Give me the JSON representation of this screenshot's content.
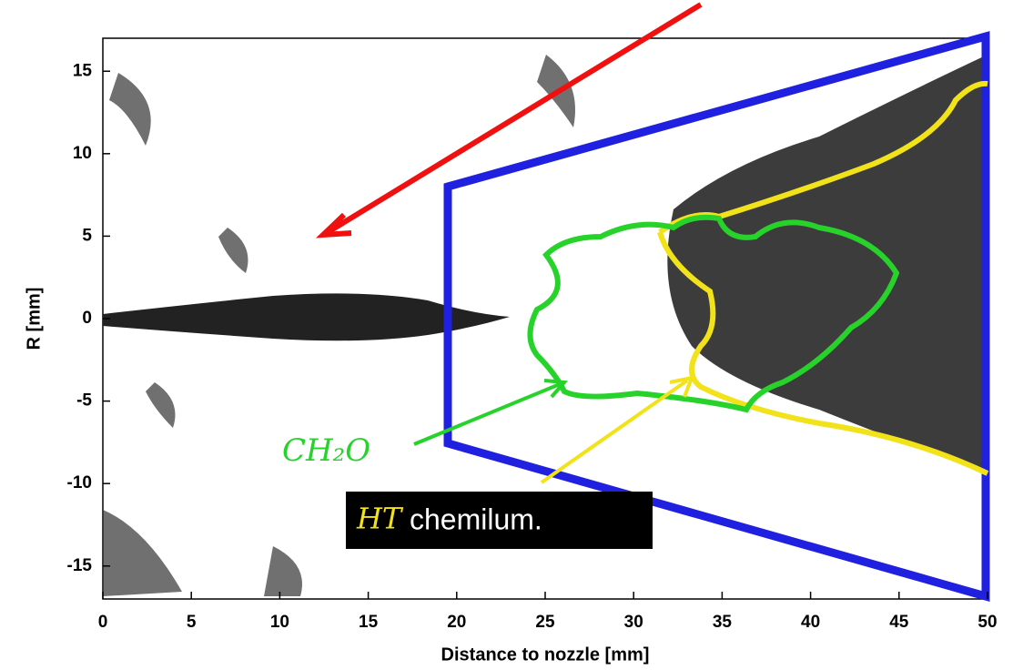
{
  "chart_data": {
    "type": "image",
    "xlabel": "Distance to nozzle [mm]",
    "ylabel": "R [mm]",
    "xlim": [
      0,
      50
    ],
    "ylim": [
      -17,
      17
    ],
    "xticks": [
      0,
      5,
      10,
      15,
      20,
      25,
      30,
      35,
      40,
      45,
      50
    ],
    "yticks": [
      -15,
      -10,
      -5,
      0,
      5,
      10,
      15
    ],
    "annotations": [
      "CH₂O",
      "HT",
      "chemilum."
    ]
  }
}
